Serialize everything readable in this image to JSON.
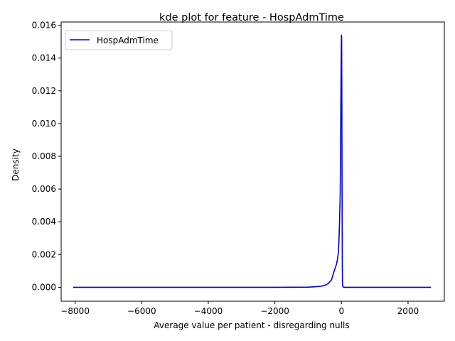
{
  "chart_data": {
    "type": "line",
    "title": "kde plot for feature -  HospAdmTime",
    "xlabel": "Average value per patient - disregarding nulls",
    "ylabel": "Density",
    "xlim": [
      -8420,
      3090
    ],
    "ylim": [
      -0.00085,
      0.0162
    ],
    "xticks": [
      -8000,
      -6000,
      -4000,
      -2000,
      0,
      2000
    ],
    "xtick_labels": [
      "−8000",
      "−6000",
      "−4000",
      "−2000",
      "0",
      "2000"
    ],
    "yticks": [
      0.0,
      0.002,
      0.004,
      0.006,
      0.008,
      0.01,
      0.012,
      0.014,
      0.016
    ],
    "ytick_labels": [
      "0.000",
      "0.002",
      "0.004",
      "0.006",
      "0.008",
      "0.010",
      "0.012",
      "0.014",
      "0.016"
    ],
    "grid": false,
    "legend": {
      "position": "top-left"
    },
    "series": [
      {
        "name": "HospAdmTime",
        "color": "#0000cd",
        "x": [
          -8060,
          -6000,
          -4000,
          -2000,
          -1000,
          -800,
          -600,
          -500,
          -400,
          -300,
          -250,
          -200,
          -150,
          -120,
          -100,
          -80,
          -60,
          -40,
          -30,
          -20,
          -10,
          0,
          5,
          10,
          15,
          20,
          25,
          30,
          40,
          60,
          100,
          500,
          1000,
          2000,
          2690
        ],
        "y": [
          0.0,
          0.0,
          0.0,
          0.0,
          1e-05,
          3e-05,
          7e-05,
          0.00012,
          0.00022,
          0.00045,
          0.0008,
          0.0011,
          0.0014,
          0.0017,
          0.002,
          0.0026,
          0.0038,
          0.0055,
          0.0075,
          0.0105,
          0.0135,
          0.0154,
          0.0153,
          0.0125,
          0.0085,
          0.0045,
          0.0015,
          0.0003,
          5e-05,
          1e-05,
          0.0,
          0.0,
          0.0,
          0.0,
          0.0
        ]
      }
    ]
  }
}
